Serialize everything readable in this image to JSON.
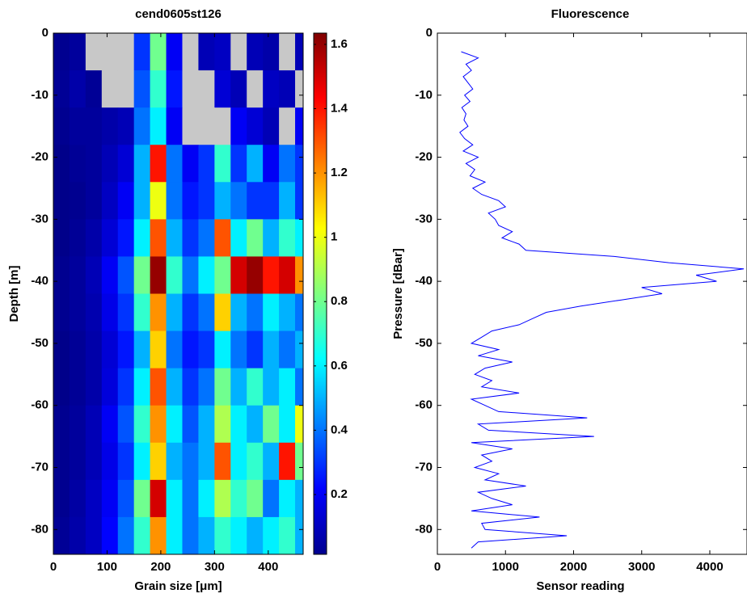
{
  "chart_data": [
    {
      "type": "heatmap",
      "title": "cend0605st126",
      "xlabel": "Grain size [μm]",
      "ylabel": "Depth [m]",
      "x": [
        15,
        45,
        75,
        105,
        135,
        165,
        195,
        225,
        255,
        285,
        315,
        345,
        375,
        405,
        435,
        465
      ],
      "y": [
        -3,
        -9,
        -15,
        -21,
        -27,
        -33,
        -39,
        -45,
        -51,
        -57,
        -63,
        -69,
        -75,
        -81
      ],
      "z": [
        [
          0.04,
          0.06,
          null,
          null,
          null,
          0.3,
          0.8,
          0.2,
          null,
          0.1,
          0.12,
          null,
          0.1,
          0.08,
          null,
          0.1
        ],
        [
          0.05,
          0.08,
          0.05,
          null,
          null,
          0.35,
          0.7,
          0.25,
          null,
          null,
          0.15,
          0.1,
          null,
          0.12,
          0.1,
          null
        ],
        [
          0.04,
          0.06,
          0.06,
          0.08,
          0.1,
          0.4,
          0.6,
          0.2,
          null,
          null,
          null,
          0.2,
          0.15,
          0.1,
          null,
          0.2
        ],
        [
          0.03,
          0.05,
          0.06,
          0.1,
          0.15,
          0.5,
          1.4,
          0.4,
          0.2,
          0.3,
          0.7,
          0.3,
          0.5,
          0.2,
          0.4,
          0.3
        ],
        [
          0.03,
          0.04,
          0.06,
          0.12,
          0.2,
          0.5,
          1.0,
          0.4,
          0.25,
          0.3,
          0.5,
          0.4,
          0.3,
          0.3,
          0.5,
          0.3
        ],
        [
          0.03,
          0.05,
          0.08,
          0.15,
          0.25,
          0.6,
          1.3,
          0.5,
          0.3,
          0.4,
          1.3,
          0.6,
          0.8,
          0.5,
          0.7,
          0.6
        ],
        [
          0.04,
          0.06,
          0.1,
          0.2,
          0.35,
          0.8,
          1.6,
          0.7,
          0.4,
          0.6,
          0.8,
          1.5,
          1.6,
          1.4,
          1.5,
          1.2
        ],
        [
          0.04,
          0.06,
          0.09,
          0.18,
          0.3,
          0.7,
          1.2,
          0.5,
          0.3,
          0.4,
          1.1,
          0.5,
          0.4,
          0.6,
          0.5,
          0.4
        ],
        [
          0.03,
          0.05,
          0.08,
          0.15,
          0.25,
          0.5,
          1.1,
          0.4,
          0.25,
          0.3,
          0.6,
          0.4,
          0.3,
          0.5,
          0.4,
          0.5
        ],
        [
          0.03,
          0.05,
          0.08,
          0.16,
          0.3,
          0.6,
          1.3,
          0.5,
          0.3,
          0.4,
          0.8,
          0.5,
          0.7,
          0.5,
          0.6,
          0.4
        ],
        [
          0.04,
          0.06,
          0.1,
          0.2,
          0.35,
          0.7,
          1.2,
          0.6,
          0.35,
          0.5,
          0.9,
          0.6,
          0.5,
          0.8,
          0.6,
          1.0
        ],
        [
          0.04,
          0.06,
          0.1,
          0.18,
          0.3,
          0.6,
          1.1,
          0.5,
          0.4,
          0.5,
          1.3,
          0.6,
          0.7,
          0.5,
          1.4,
          0.8
        ],
        [
          0.04,
          0.07,
          0.12,
          0.2,
          0.35,
          0.8,
          1.5,
          0.6,
          0.4,
          0.6,
          0.9,
          0.7,
          0.8,
          0.4,
          0.6,
          0.5
        ],
        [
          0.05,
          0.08,
          0.12,
          0.22,
          0.4,
          0.7,
          1.2,
          0.6,
          0.4,
          0.5,
          0.7,
          0.6,
          0.5,
          0.6,
          0.7,
          0.5
        ]
      ],
      "xlim": [
        0,
        465
      ],
      "ylim": [
        -84,
        0
      ],
      "xticks": [
        0,
        100,
        200,
        300,
        400
      ],
      "yticks": [
        0,
        -10,
        -20,
        -30,
        -40,
        -50,
        -60,
        -70,
        -80
      ],
      "colormap": "jet",
      "nan_color": "#c8c8c8",
      "clim": [
        0.014,
        1.635
      ],
      "cticks": [
        0.2,
        0.4,
        0.6,
        0.8,
        1,
        1.2,
        1.4,
        1.6
      ]
    },
    {
      "type": "line",
      "title": "Fluorescence",
      "xlabel": "Sensor reading",
      "ylabel": "Pressure [dBar]",
      "series": [
        {
          "color": "#0000ff",
          "y": [
            -3,
            -4,
            -5,
            -6,
            -7,
            -8,
            -9,
            -10,
            -11,
            -12,
            -13,
            -14,
            -15,
            -16,
            -17,
            -18,
            -19,
            -20,
            -21,
            -22,
            -23,
            -24,
            -25,
            -26,
            -27,
            -28,
            -29,
            -30,
            -31,
            -32,
            -33,
            -34,
            -35,
            -36,
            -37,
            -38,
            -39,
            -40,
            -41,
            -42,
            -43,
            -44,
            -45,
            -46,
            -47,
            -48,
            -49,
            -50,
            -51,
            -52,
            -53,
            -54,
            -55,
            -56,
            -57,
            -58,
            -59,
            -60,
            -61,
            -62,
            -63,
            -64,
            -65,
            -66,
            -67,
            -68,
            -69,
            -70,
            -71,
            -72,
            -73,
            -74,
            -75,
            -76,
            -77,
            -78,
            -79,
            -80,
            -81,
            -82,
            -83
          ],
          "values": [
            350,
            600,
            420,
            500,
            380,
            450,
            520,
            400,
            480,
            360,
            420,
            390,
            450,
            330,
            400,
            520,
            380,
            600,
            420,
            550,
            480,
            700,
            520,
            650,
            900,
            1000,
            750,
            850,
            900,
            1100,
            950,
            1200,
            1300,
            2600,
            3400,
            4500,
            3800,
            4100,
            3000,
            3300,
            2700,
            2100,
            1600,
            1400,
            1200,
            800,
            650,
            500,
            900,
            600,
            1100,
            700,
            550,
            800,
            650,
            1200,
            500,
            700,
            900,
            2200,
            600,
            750,
            2300,
            500,
            1100,
            650,
            800,
            550,
            900,
            700,
            1300,
            600,
            800,
            1100,
            500,
            1500,
            650,
            700,
            1900,
            600,
            500
          ]
        }
      ],
      "xlim": [
        0,
        4546
      ],
      "ylim": [
        -84,
        0
      ],
      "xticks": [
        0,
        1000,
        2000,
        3000,
        4000
      ],
      "yticks": [
        0,
        -10,
        -20,
        -30,
        -40,
        -50,
        -60,
        -70,
        -80
      ]
    }
  ]
}
